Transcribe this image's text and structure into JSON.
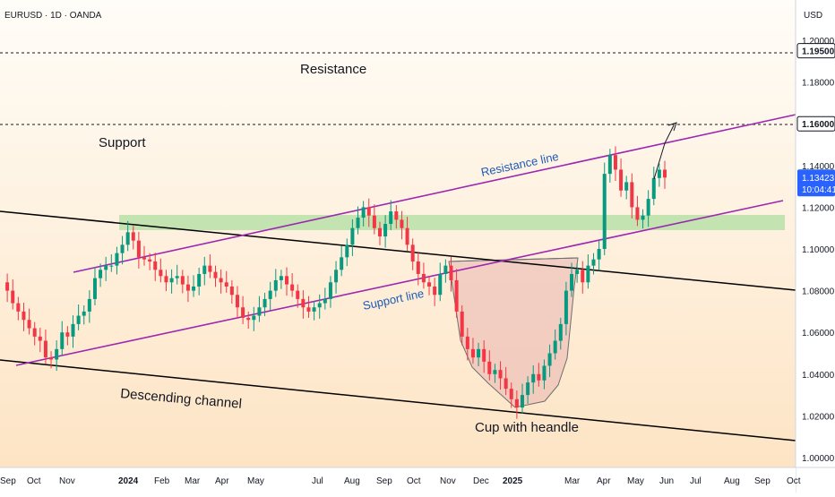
{
  "header": {
    "symbol": "EURUSD · 1D · OANDA",
    "currency": "USD"
  },
  "chart_data": {
    "type": "candlestick",
    "ylim": [
      1.0,
      1.2
    ],
    "y_ticks": [
      "1.00000",
      "1.02000",
      "1.04000",
      "1.06000",
      "1.08000",
      "1.10000",
      "1.12000",
      "1.14000",
      "1.16000",
      "1.18000",
      "1.19500",
      "1.20000"
    ],
    "plain_y_ticks": [
      "1.00000",
      "1.02000",
      "1.04000",
      "1.06000",
      "1.08000",
      "1.10000",
      "1.12000",
      "1.14000",
      "1.18000",
      "1.20000"
    ],
    "x_ticks": [
      "Sep",
      "Oct",
      "Nov",
      "2024",
      "Feb",
      "Mar",
      "Apr",
      "May",
      "Jul",
      "Aug",
      "Sep",
      "Oct",
      "Nov",
      "Dec",
      "2025",
      "Mar",
      "Apr",
      "May",
      "Jun",
      "Jul",
      "Aug",
      "Sep",
      "Oct"
    ],
    "price_markers": [
      {
        "label": "1.19500",
        "value": 1.195
      },
      {
        "label": "1.16000",
        "value": 1.16
      }
    ],
    "current_price": {
      "label": "1.13423",
      "value": 1.13423,
      "countdown": "10:04:41"
    },
    "annotations": [
      "Resistance",
      "Support",
      "Resistance line",
      "Support line",
      "Descending channel",
      "Cup with heandle"
    ],
    "colors": {
      "up": "#089981",
      "down": "#f23645",
      "channel": "#000000",
      "trend": "#9c27b0",
      "zone": "#b8e0a8",
      "cup": "#e8b4b0",
      "label_blue": "#1e5bb5",
      "price_tag": "#2962ff"
    },
    "close_series": [
      1.084,
      1.08,
      1.074,
      1.07,
      1.066,
      1.062,
      1.058,
      1.056,
      1.048,
      1.047,
      1.052,
      1.06,
      1.058,
      1.064,
      1.068,
      1.07,
      1.076,
      1.086,
      1.09,
      1.092,
      1.092,
      1.098,
      1.102,
      1.108,
      1.104,
      1.096,
      1.095,
      1.094,
      1.09,
      1.087,
      1.084,
      1.086,
      1.087,
      1.083,
      1.08,
      1.082,
      1.088,
      1.092,
      1.089,
      1.086,
      1.084,
      1.082,
      1.078,
      1.072,
      1.067,
      1.066,
      1.068,
      1.072,
      1.076,
      1.08,
      1.085,
      1.087,
      1.083,
      1.08,
      1.076,
      1.072,
      1.07,
      1.072,
      1.074,
      1.076,
      1.084,
      1.09,
      1.096,
      1.102,
      1.11,
      1.115,
      1.12,
      1.116,
      1.11,
      1.106,
      1.112,
      1.118,
      1.114,
      1.11,
      1.102,
      1.094,
      1.088,
      1.084,
      1.082,
      1.078,
      1.088,
      1.092,
      1.085,
      1.07,
      1.058,
      1.052,
      1.048,
      1.052,
      1.046,
      1.04,
      1.042,
      1.038,
      1.033,
      1.028,
      1.024,
      1.03,
      1.036,
      1.04,
      1.037,
      1.044,
      1.05,
      1.056,
      1.064,
      1.08,
      1.088,
      1.09,
      1.084,
      1.092,
      1.095,
      1.1,
      1.136,
      1.145,
      1.138,
      1.128,
      1.132,
      1.12,
      1.114,
      1.116,
      1.124,
      1.134,
      1.138,
      1.1342
    ]
  }
}
